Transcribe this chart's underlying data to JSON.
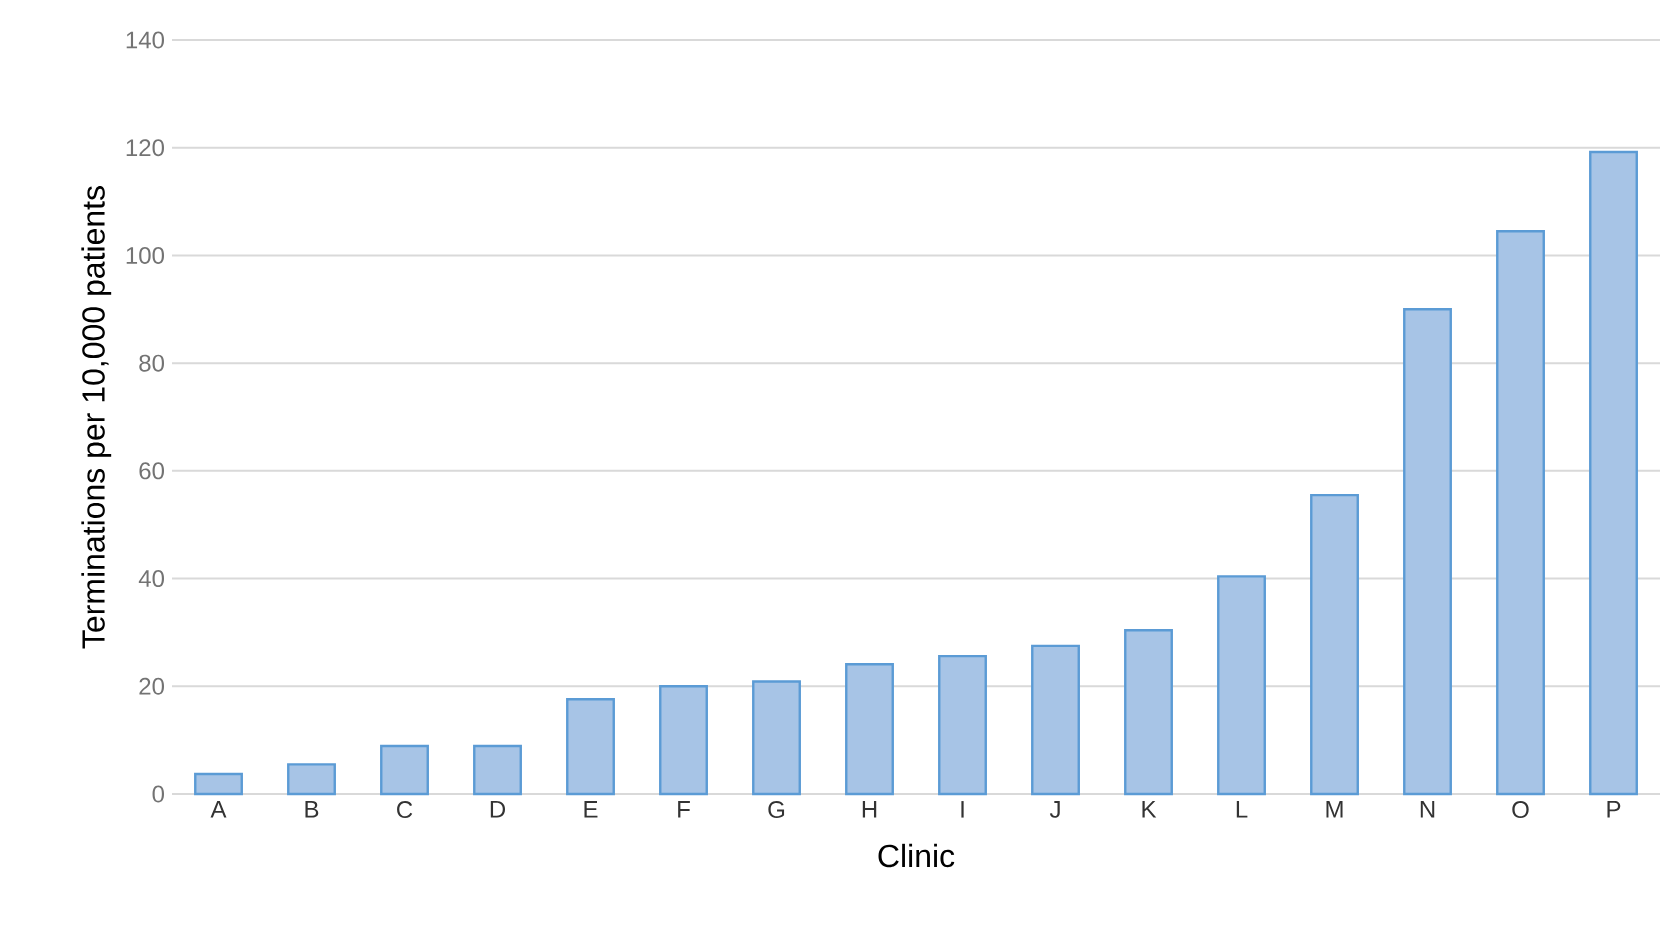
{
  "chart_data": {
    "type": "bar",
    "xlabel": "Clinic",
    "ylabel": "Terminations per 10,000 patients",
    "categories": [
      "A",
      "B",
      "C",
      "D",
      "E",
      "F",
      "G",
      "H",
      "I",
      "J",
      "K",
      "L",
      "M",
      "N",
      "O",
      "P"
    ],
    "values": [
      3.7,
      5.5,
      8.9,
      8.9,
      17.6,
      20,
      20.9,
      24.1,
      25.6,
      27.5,
      30.4,
      40.4,
      55.5,
      90,
      104.5,
      119.2
    ],
    "color": "#a7c4e6",
    "ylim": [
      0,
      140
    ],
    "yticks": [
      0,
      20,
      40,
      60,
      80,
      100,
      120,
      140
    ],
    "grid": "y"
  }
}
